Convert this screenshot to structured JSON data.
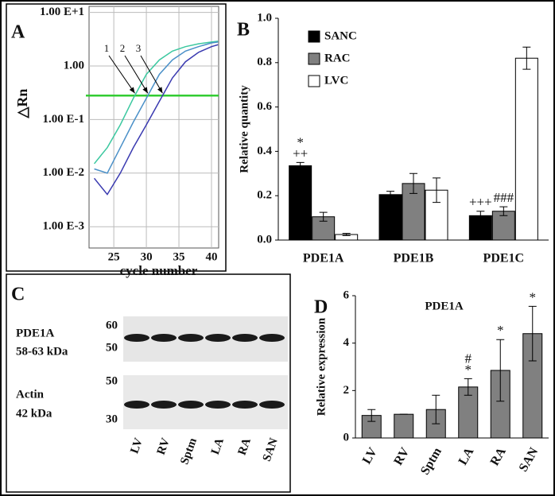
{
  "chart_data": [
    {
      "type": "line",
      "panel_label": "A",
      "y_label": "△Rn",
      "x_label": "cycle number",
      "log_y": true,
      "grid": true,
      "x": [
        22,
        24,
        26,
        28,
        30,
        32,
        34,
        36,
        38,
        40,
        41
      ],
      "series": [
        {
          "color": "#3cc8a0",
          "values": [
            0.015,
            0.03,
            0.08,
            0.25,
            0.7,
            1.3,
            1.9,
            2.3,
            2.6,
            2.8,
            2.9
          ]
        },
        {
          "color": "#4a90c8",
          "values": [
            0.012,
            0.01,
            0.03,
            0.09,
            0.25,
            0.7,
            1.3,
            1.9,
            2.3,
            2.7,
            2.8
          ]
        },
        {
          "color": "#3a3ab0",
          "values": [
            0.008,
            0.004,
            0.01,
            0.03,
            0.08,
            0.22,
            0.6,
            1.2,
            1.8,
            2.3,
            2.5
          ]
        }
      ],
      "curve_labels": [
        "1",
        "2",
        "3"
      ],
      "threshold": 0.28,
      "threshold_color": "#33cc33",
      "xlim": [
        21.2,
        41.1
      ],
      "xticks": [
        25,
        30,
        35,
        40
      ],
      "ylim": [
        0.0004,
        13
      ],
      "yticks": [
        {
          "value": 10,
          "label": "1.00 E+1"
        },
        {
          "value": 1,
          "label": "1.00"
        },
        {
          "value": 0.1,
          "label": "1.00 E-1"
        },
        {
          "value": 0.01,
          "label": "1.00 E-2"
        },
        {
          "value": 0.001,
          "label": "1.00 E-3"
        }
      ]
    },
    {
      "type": "bar",
      "panel_label": "B",
      "y_label": "Relative quantity",
      "categories": [
        "PDE1A",
        "PDE1B",
        "PDE1C"
      ],
      "series": [
        {
          "name": "SANC",
          "color": "#000000",
          "values": [
            0.335,
            0.205,
            0.11
          ],
          "errors": [
            0.015,
            0.015,
            0.02
          ],
          "annotations": [
            [
              "*",
              "++"
            ],
            null,
            [
              "+++"
            ]
          ]
        },
        {
          "name": "RAC",
          "color": "#808080",
          "values": [
            0.105,
            0.255,
            0.13
          ],
          "errors": [
            0.02,
            0.045,
            0.02
          ],
          "annotations": [
            null,
            null,
            [
              "###"
            ]
          ]
        },
        {
          "name": "LVC",
          "color": "#ffffff",
          "values": [
            0.025,
            0.225,
            0.82
          ],
          "errors": [
            0.005,
            0.055,
            0.05
          ],
          "annotations": [
            null,
            null,
            null
          ]
        }
      ],
      "legend": "top-left",
      "ylim": [
        0,
        1
      ],
      "yticks": [
        {
          "value": 0,
          "label": "0.0"
        },
        0.2,
        0.4,
        0.6,
        0.8,
        {
          "value": 1,
          "label": "1.0"
        }
      ]
    },
    {
      "type": "bar",
      "panel_label": "D",
      "title": "PDE1A",
      "y_label": "Relative expression",
      "categories": [
        "LV",
        "RV",
        "Sptm",
        "LA",
        "RA",
        "SAN"
      ],
      "color": "#808080",
      "values": [
        0.95,
        1.0,
        1.2,
        2.15,
        2.85,
        4.4
      ],
      "errors": [
        0.25,
        0,
        0.6,
        0.35,
        1.3,
        1.15
      ],
      "annotations": [
        null,
        null,
        null,
        [
          "#",
          "*"
        ],
        [
          "*"
        ],
        [
          "*"
        ]
      ],
      "ylim": [
        0,
        6
      ],
      "yticks": [
        0,
        2,
        4,
        6
      ]
    }
  ],
  "blot": {
    "panel_label": "C",
    "rows": [
      {
        "protein": "PDE1A",
        "size": "58-63 kDa",
        "markers": [
          "60",
          "50"
        ]
      },
      {
        "protein": "Actin",
        "size": "42 kDa",
        "markers": [
          "50",
          "30"
        ]
      }
    ],
    "lanes": [
      "LV",
      "RV",
      "Sptm",
      "LA",
      "RA",
      "SAN"
    ]
  }
}
